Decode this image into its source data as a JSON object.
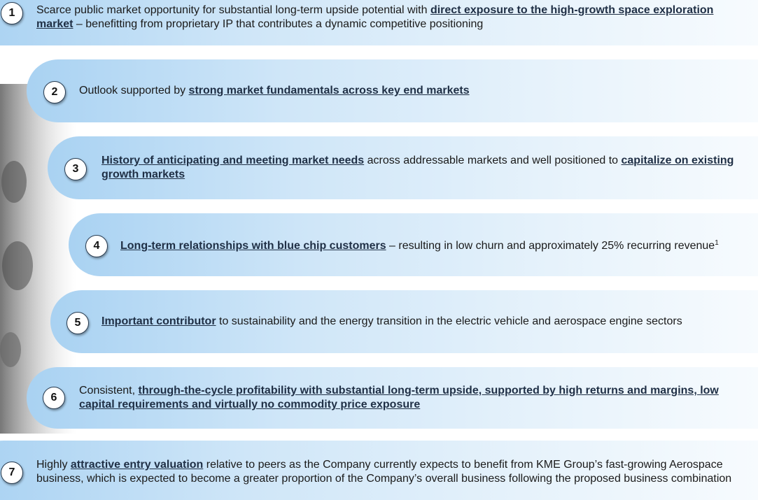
{
  "items": [
    {
      "number": "1",
      "segments": [
        {
          "text": "Scarce public market opportunity for substantial long-term upside potential with "
        },
        {
          "text": "direct exposure to the high-growth space exploration market",
          "strong": true
        },
        {
          "text": " – benefitting from proprietary IP that contributes a dynamic competitive positioning"
        }
      ]
    },
    {
      "number": "2",
      "segments": [
        {
          "text": "Outlook supported by "
        },
        {
          "text": "strong market fundamentals across key end markets",
          "strong": true
        }
      ]
    },
    {
      "number": "3",
      "segments": [
        {
          "text": "History of anticipating and meeting market needs",
          "strong": true
        },
        {
          "text": " across addressable markets and well positioned to "
        },
        {
          "text": "capitalize on existing growth markets",
          "strong": true
        }
      ]
    },
    {
      "number": "4",
      "segments": [
        {
          "text": "Long-term relationships with blue chip customers",
          "strong": true
        },
        {
          "text": " – resulting in low churn and approximately 25% recurring revenue"
        },
        {
          "text": "1",
          "sup": true
        }
      ]
    },
    {
      "number": "5",
      "segments": [
        {
          "text": "Important contributor",
          "strong": true
        },
        {
          "text": " to sustainability and the energy transition in the electric vehicle and aerospace engine sectors"
        }
      ]
    },
    {
      "number": "6",
      "segments": [
        {
          "text": "Consistent, "
        },
        {
          "text": "through-the-cycle profitability with substantial long-term upside, supported by high returns and margins, low capital requirements and virtually no commodity price exposure",
          "strong": true
        }
      ]
    },
    {
      "number": "7",
      "segments": [
        {
          "text": "Highly "
        },
        {
          "text": "attractive entry valuation",
          "strong": true
        },
        {
          "text": " relative to peers as the Company currently expects to benefit from KME Group’s fast-growing Aerospace business, which is expected to become a greater proportion of the Company’s overall business following the proposed business combination"
        }
      ]
    }
  ]
}
